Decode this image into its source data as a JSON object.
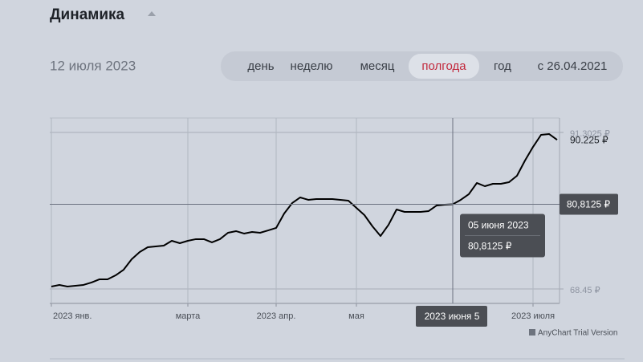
{
  "header": {
    "title": "Динамика"
  },
  "date": "12 июля 2023",
  "periods": {
    "items": [
      "день",
      "неделю",
      "месяц",
      "полгода",
      "год",
      "с 26.04.2021"
    ],
    "active": 3
  },
  "chart_data": {
    "type": "line",
    "categories": [
      "2023 янв.",
      null,
      null,
      null,
      null,
      null,
      null,
      null,
      null,
      null,
      null,
      null,
      null,
      null,
      null,
      null,
      null,
      "марта",
      null,
      null,
      null,
      null,
      null,
      null,
      null,
      null,
      null,
      null,
      "2023 апр.",
      null,
      null,
      null,
      null,
      null,
      null,
      null,
      null,
      null,
      "мая",
      null,
      null,
      null,
      null,
      null,
      null,
      null,
      null,
      null,
      null,
      null,
      null,
      null,
      null,
      null,
      null,
      null,
      null,
      null,
      null,
      null,
      "2023 июля",
      null,
      null,
      null
    ],
    "series": [
      {
        "color": "#000000",
        "values": [
          68.8,
          69.04,
          68.8,
          68.92,
          69.04,
          69.39,
          69.86,
          69.86,
          70.44,
          71.26,
          72.79,
          73.84,
          74.54,
          74.66,
          74.78,
          75.48,
          75.13,
          75.48,
          75.72,
          75.72,
          75.25,
          75.72,
          76.65,
          76.89,
          76.54,
          76.77,
          76.65,
          77.0,
          77.36,
          79.46,
          80.99,
          81.81,
          81.46,
          81.57,
          81.57,
          81.57,
          81.46,
          81.34,
          80.28,
          79.23,
          77.59,
          76.18,
          77.82,
          80.05,
          79.7,
          79.7,
          79.7,
          79.82,
          80.64,
          80.75,
          80.8125,
          81.46,
          82.28,
          83.92,
          83.45,
          83.8,
          83.8,
          84.03,
          84.97,
          87.2,
          89.19,
          90.95,
          91.07,
          90.225
        ],
        "value_labels": [
          null,
          null,
          null,
          null,
          null,
          null,
          null,
          null,
          null,
          null,
          null,
          null,
          null,
          null,
          null,
          null,
          null,
          null,
          null,
          null,
          null,
          null,
          null,
          null,
          null,
          null,
          null,
          null,
          null,
          null,
          null,
          null,
          null,
          null,
          null,
          null,
          null,
          null,
          null,
          null,
          null,
          null,
          null,
          null,
          null,
          null,
          null,
          null,
          null,
          null,
          "80,8125 ₽",
          null,
          null,
          null,
          null,
          null,
          null,
          null,
          null,
          null,
          null,
          null,
          null,
          "90.225 ₽"
        ]
      }
    ],
    "ylim": [
      66.34,
      93.41
    ],
    "yticks": [
      {
        "value": 68.45,
        "label": "68.45 ₽"
      },
      {
        "value": 91.3025,
        "label": "91.3025 ₽"
      }
    ],
    "grid": true,
    "crosshair_x_label": "2023 июня 5",
    "tooltip_title": "05 июня 2023",
    "credit": "AnyChart Trial Version"
  }
}
